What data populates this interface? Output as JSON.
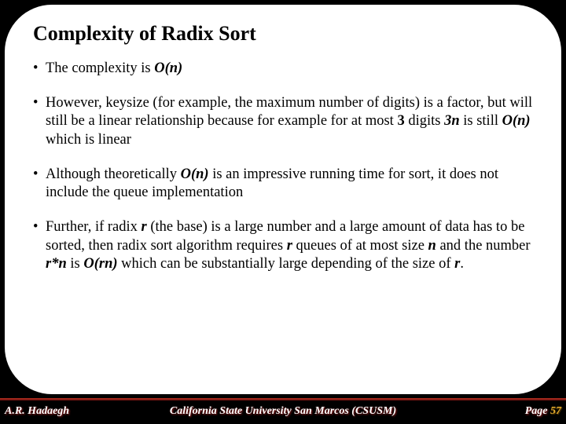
{
  "slide": {
    "title": "Complexity of Radix Sort",
    "bullets": [
      {
        "html": "The complexity is <span class='bi'>O(n)</span>"
      },
      {
        "html": "However, keysize (for example, the maximum number of digits) is a factor, but will still be a linear relationship because for example for at most <span class='bold'>3</span> digits <span class='bi'>3n</span> is still <span class='bi'>O(n)</span> which is linear"
      },
      {
        "html": "Although theoretically <span class='bi'>O(n)</span> is an impressive running time for sort, it does not include the queue implementation"
      },
      {
        "html": "Further, if radix <span class='bi'>r</span> (the base) is a large number and a large amount of data has to be sorted, then radix sort algorithm requires <span class='bi'>r</span> queues of at most size <span class='bi'>n</span> and the number <span class='bi'>r*n</span> is <span class='bi'>O(rn)</span> which can be substantially large depending of the size of <span class='bi'>r</span>."
      }
    ]
  },
  "footer": {
    "author": "A.R. Hadaegh",
    "institution": "California State University San Marcos (CSUSM)",
    "page_label": "Page",
    "page_number": "57"
  },
  "colors": {
    "background": "#000000",
    "card": "#ffffff",
    "text": "#000000",
    "footer_text": "#ffffff",
    "footer_shadow": "#a02020",
    "page_num": "#e8b030",
    "bar": "#b03020"
  }
}
